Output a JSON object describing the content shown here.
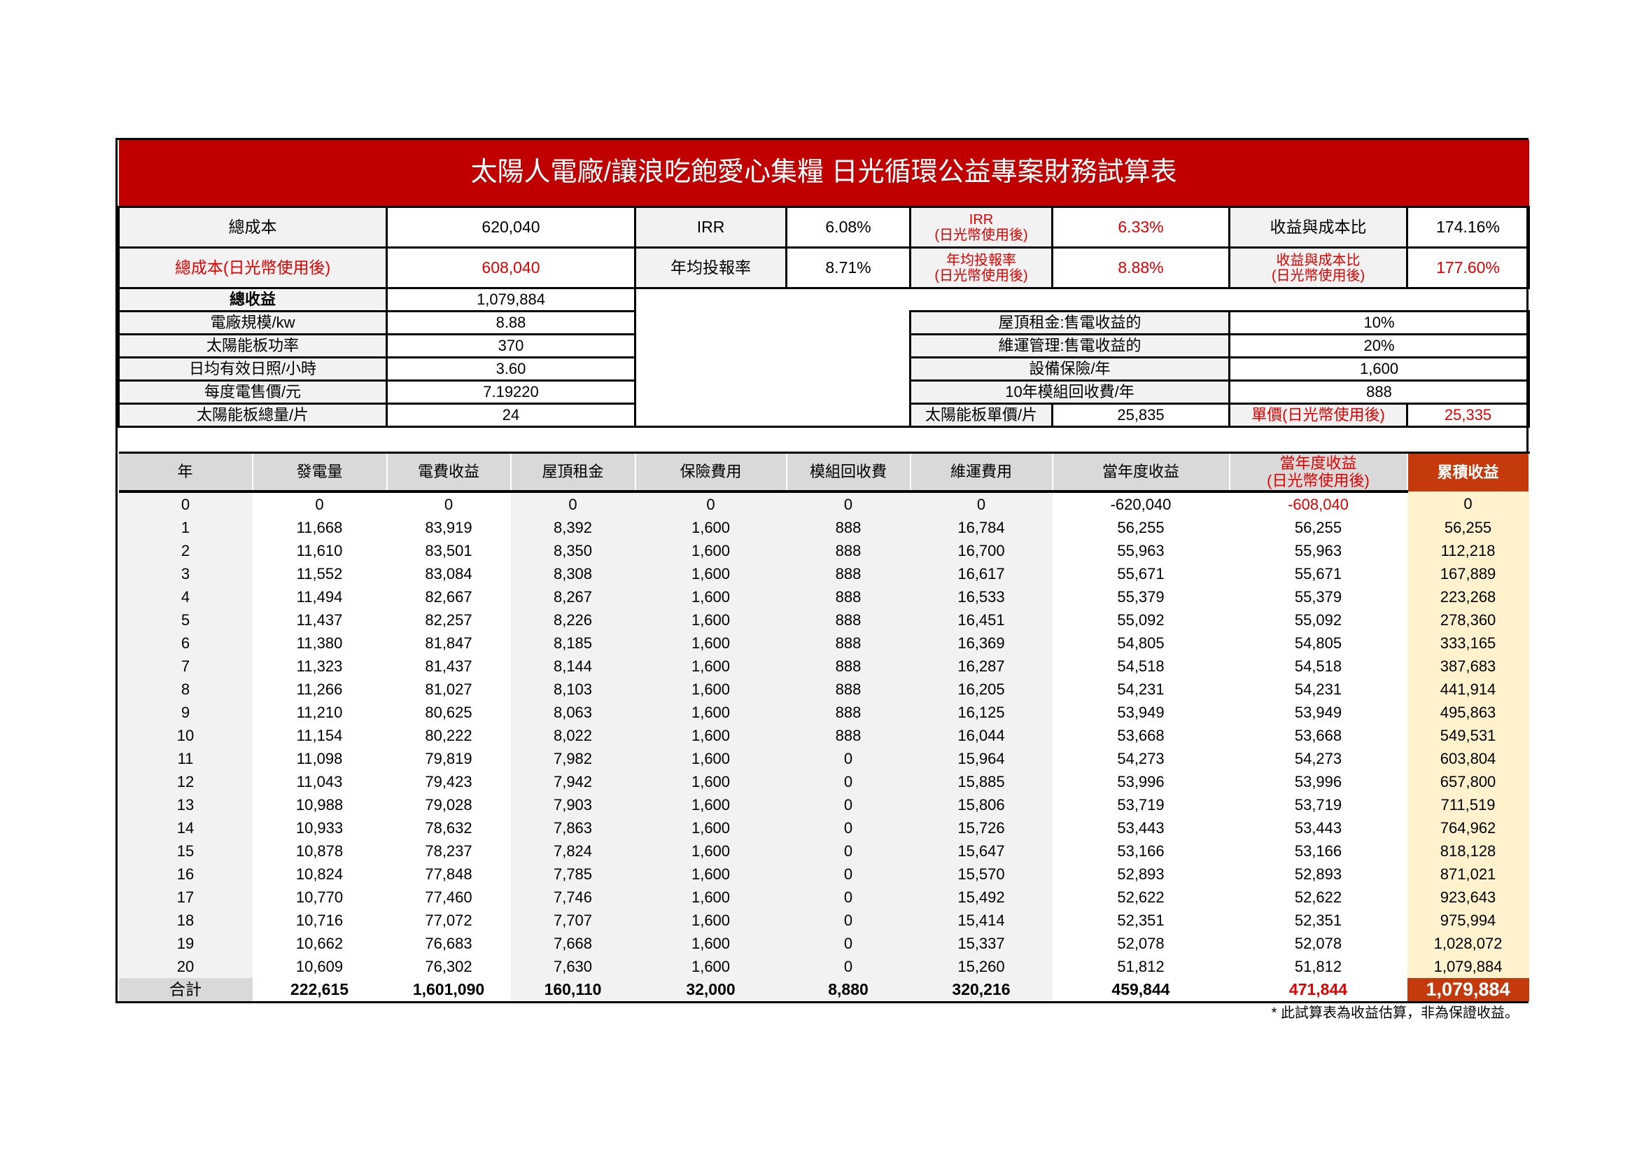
{
  "title": "太陽人電廠/讓浪吃飽愛心集糧 日光循環公益專案財務試算表",
  "summary": {
    "total_cost_label": "總成本",
    "total_cost": "620,040",
    "irr_label": "IRR",
    "irr": "6.08%",
    "irr_after_label_1": "IRR",
    "irr_after_label_2": "(日光幣使用後)",
    "irr_after": "6.33%",
    "ratio_label": "收益與成本比",
    "ratio": "174.16%",
    "total_cost_after_label": "總成本(日光幣使用後)",
    "total_cost_after": "608,040",
    "avg_return_label": "年均投報率",
    "avg_return": "8.71%",
    "avg_return_after_label_1": "年均投報率",
    "avg_return_after_label_2": "(日光幣使用後)",
    "avg_return_after": "8.88%",
    "ratio_after_label_1": "收益與成本比",
    "ratio_after_label_2": "(日光幣使用後)",
    "ratio_after": "177.60%",
    "total_income_label": "總收益",
    "total_income": "1,079,884"
  },
  "params_left": [
    {
      "label": "電廠規模/kw",
      "value": "8.88"
    },
    {
      "label": "太陽能板功率",
      "value": "370"
    },
    {
      "label": "日均有效日照/小時",
      "value": "3.60"
    },
    {
      "label": "每度電售價/元",
      "value": "7.19220"
    },
    {
      "label": "太陽能板總量/片",
      "value": "24"
    }
  ],
  "params_right": [
    {
      "label": "屋頂租金:售電收益的",
      "value": "10%"
    },
    {
      "label": "維運管理:售電收益的",
      "value": "20%"
    },
    {
      "label": "設備保險/年",
      "value": "1,600"
    },
    {
      "label": "10年模組回收費/年",
      "value": "888"
    }
  ],
  "unit_price": {
    "label": "太陽能板單價/片",
    "value": "25,835",
    "after_label": "單價(日光幣使用後)",
    "after_value": "25,335"
  },
  "table": {
    "headers": [
      "年",
      "發電量",
      "電費收益",
      "屋頂租金",
      "保險費用",
      "模組回收費",
      "維運費用",
      "當年度收益",
      "當年度收益",
      "累積收益"
    ],
    "header_after_suffix": "(日光幣使用後)",
    "rows": [
      [
        "0",
        "0",
        "0",
        "0",
        "0",
        "0",
        "0",
        "-620,040",
        "-608,040",
        "0"
      ],
      [
        "1",
        "11,668",
        "83,919",
        "8,392",
        "1,600",
        "888",
        "16,784",
        "56,255",
        "56,255",
        "56,255"
      ],
      [
        "2",
        "11,610",
        "83,501",
        "8,350",
        "1,600",
        "888",
        "16,700",
        "55,963",
        "55,963",
        "112,218"
      ],
      [
        "3",
        "11,552",
        "83,084",
        "8,308",
        "1,600",
        "888",
        "16,617",
        "55,671",
        "55,671",
        "167,889"
      ],
      [
        "4",
        "11,494",
        "82,667",
        "8,267",
        "1,600",
        "888",
        "16,533",
        "55,379",
        "55,379",
        "223,268"
      ],
      [
        "5",
        "11,437",
        "82,257",
        "8,226",
        "1,600",
        "888",
        "16,451",
        "55,092",
        "55,092",
        "278,360"
      ],
      [
        "6",
        "11,380",
        "81,847",
        "8,185",
        "1,600",
        "888",
        "16,369",
        "54,805",
        "54,805",
        "333,165"
      ],
      [
        "7",
        "11,323",
        "81,437",
        "8,144",
        "1,600",
        "888",
        "16,287",
        "54,518",
        "54,518",
        "387,683"
      ],
      [
        "8",
        "11,266",
        "81,027",
        "8,103",
        "1,600",
        "888",
        "16,205",
        "54,231",
        "54,231",
        "441,914"
      ],
      [
        "9",
        "11,210",
        "80,625",
        "8,063",
        "1,600",
        "888",
        "16,125",
        "53,949",
        "53,949",
        "495,863"
      ],
      [
        "10",
        "11,154",
        "80,222",
        "8,022",
        "1,600",
        "888",
        "16,044",
        "53,668",
        "53,668",
        "549,531"
      ],
      [
        "11",
        "11,098",
        "79,819",
        "7,982",
        "1,600",
        "0",
        "15,964",
        "54,273",
        "54,273",
        "603,804"
      ],
      [
        "12",
        "11,043",
        "79,423",
        "7,942",
        "1,600",
        "0",
        "15,885",
        "53,996",
        "53,996",
        "657,800"
      ],
      [
        "13",
        "10,988",
        "79,028",
        "7,903",
        "1,600",
        "0",
        "15,806",
        "53,719",
        "53,719",
        "711,519"
      ],
      [
        "14",
        "10,933",
        "78,632",
        "7,863",
        "1,600",
        "0",
        "15,726",
        "53,443",
        "53,443",
        "764,962"
      ],
      [
        "15",
        "10,878",
        "78,237",
        "7,824",
        "1,600",
        "0",
        "15,647",
        "53,166",
        "53,166",
        "818,128"
      ],
      [
        "16",
        "10,824",
        "77,848",
        "7,785",
        "1,600",
        "0",
        "15,570",
        "52,893",
        "52,893",
        "871,021"
      ],
      [
        "17",
        "10,770",
        "77,460",
        "7,746",
        "1,600",
        "0",
        "15,492",
        "52,622",
        "52,622",
        "923,643"
      ],
      [
        "18",
        "10,716",
        "77,072",
        "7,707",
        "1,600",
        "0",
        "15,414",
        "52,351",
        "52,351",
        "975,994"
      ],
      [
        "19",
        "10,662",
        "76,683",
        "7,668",
        "1,600",
        "0",
        "15,337",
        "52,078",
        "52,078",
        "1,028,072"
      ],
      [
        "20",
        "10,609",
        "76,302",
        "7,630",
        "1,600",
        "0",
        "15,260",
        "51,812",
        "51,812",
        "1,079,884"
      ]
    ],
    "total": [
      "合計",
      "222,615",
      "1,601,090",
      "160,110",
      "32,000",
      "8,880",
      "320,216",
      "459,844",
      "471,844",
      "1,079,884"
    ]
  },
  "note": "* 此試算表為收益估算，非為保證收益。",
  "colors": {
    "title_bg": "#c00000",
    "highlight_red": "#e00000",
    "cumulative_header": "#c53a0c",
    "cumulative_col": "#fff2cc"
  }
}
